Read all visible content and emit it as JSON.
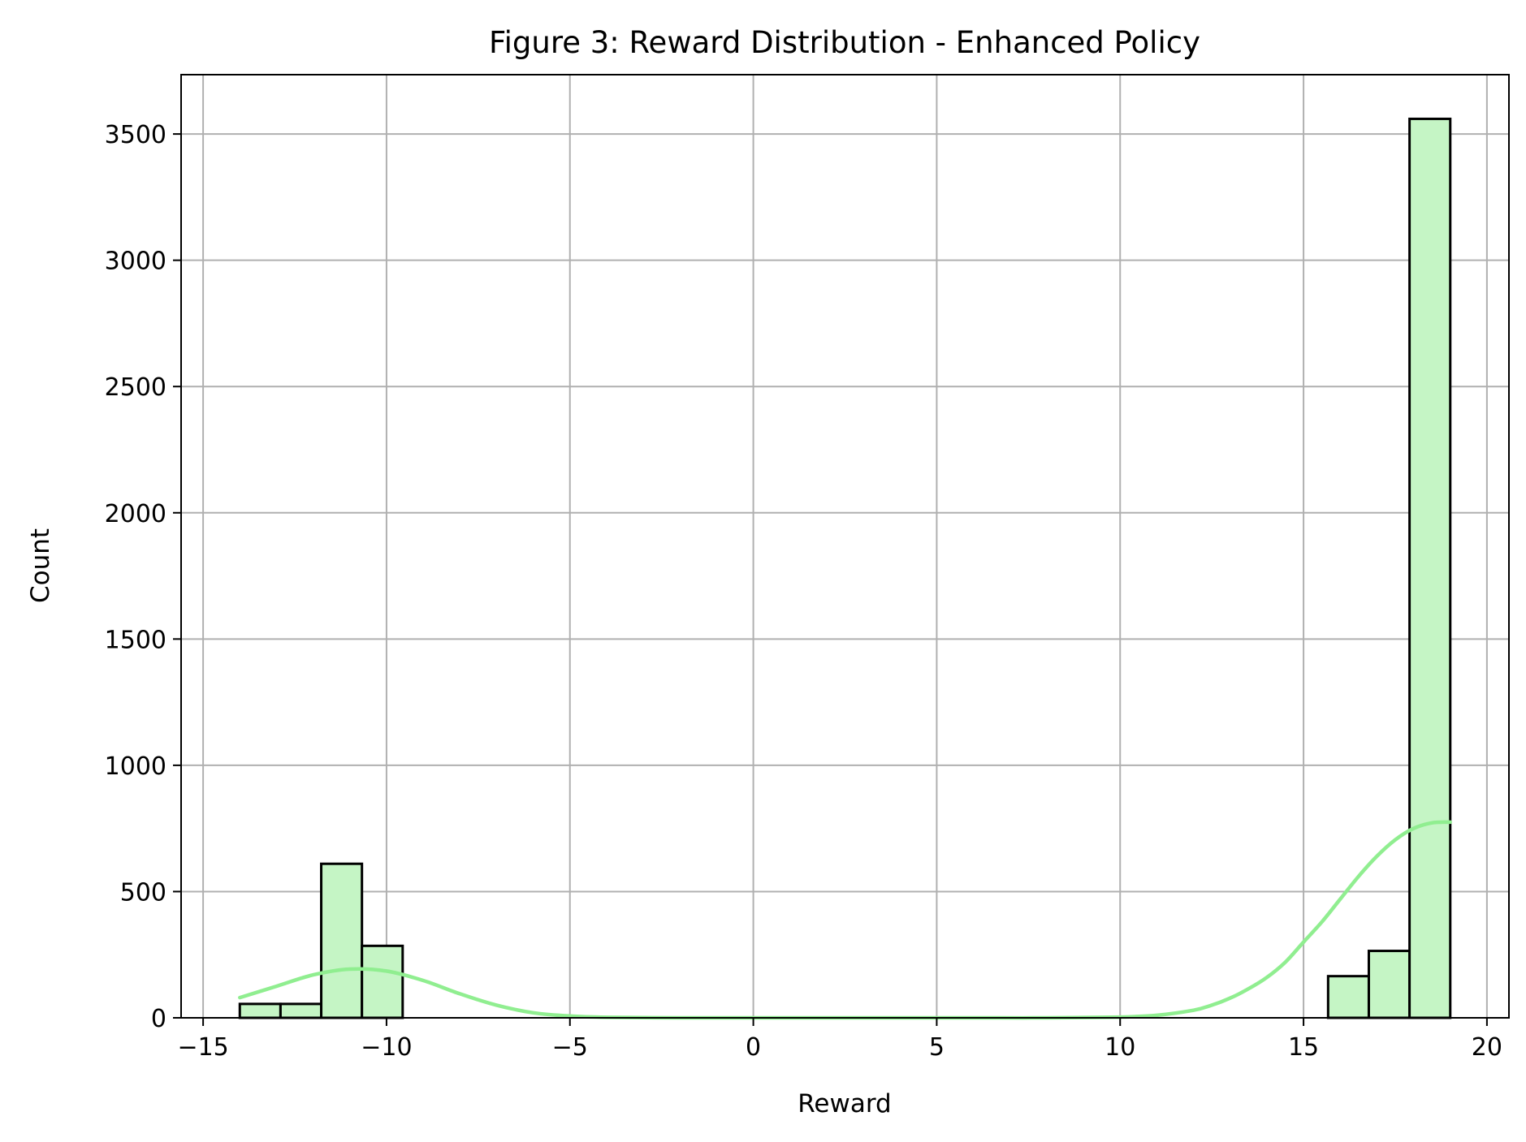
{
  "chart_data": {
    "type": "bar",
    "title": "Figure 3: Reward Distribution - Enhanced Policy",
    "xlabel": "Reward",
    "ylabel": "Count",
    "xlim": [
      -15.6,
      20.6
    ],
    "ylim": [
      0,
      3735
    ],
    "x_ticks": [
      -15,
      -10,
      -5,
      0,
      5,
      10,
      15,
      20
    ],
    "x_tick_labels": [
      "−15",
      "−10",
      "−5",
      "0",
      "5",
      "10",
      "15",
      "20"
    ],
    "y_ticks": [
      0,
      500,
      1000,
      1500,
      2000,
      2500,
      3000,
      3500
    ],
    "y_tick_labels": [
      "0",
      "500",
      "1000",
      "1500",
      "2000",
      "2500",
      "3000",
      "3500"
    ],
    "grid": true,
    "colors": {
      "bar_fill": "#c5f5c5",
      "bar_edge": "#000000",
      "kde_line": "#90ee90",
      "grid": "#b0b0b0"
    },
    "bins": [
      {
        "x0": -14.0,
        "x1": -12.89,
        "count": 55
      },
      {
        "x0": -12.89,
        "x1": -11.78,
        "count": 55
      },
      {
        "x0": -11.78,
        "x1": -10.67,
        "count": 610
      },
      {
        "x0": -10.67,
        "x1": -9.56,
        "count": 285
      },
      {
        "x0": 15.67,
        "x1": 16.78,
        "count": 165
      },
      {
        "x0": 16.78,
        "x1": 17.89,
        "count": 265
      },
      {
        "x0": 17.89,
        "x1": 19.0,
        "count": 3560
      }
    ],
    "kde": {
      "x": [
        -14,
        -13,
        -12,
        -11,
        -10,
        -9,
        -8,
        -7,
        -6,
        -5,
        -4,
        -2,
        0,
        2,
        4,
        6,
        8,
        10,
        11,
        12,
        12.5,
        13,
        13.5,
        14,
        14.5,
        15,
        15.5,
        16,
        16.5,
        17,
        17.5,
        18,
        18.5,
        19
      ],
      "y": [
        80,
        125,
        170,
        193,
        185,
        148,
        95,
        50,
        20,
        7,
        2,
        0,
        0,
        0,
        0,
        0,
        0,
        3,
        10,
        30,
        50,
        78,
        115,
        160,
        220,
        300,
        380,
        470,
        560,
        640,
        705,
        750,
        772,
        775
      ]
    }
  }
}
